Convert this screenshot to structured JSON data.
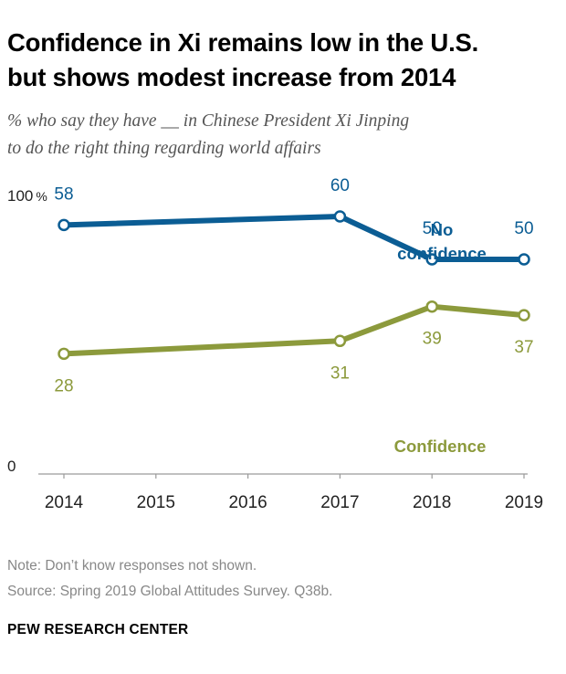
{
  "title_lines": [
    "Confidence in Xi remains low in the U.S.",
    "but shows modest increase from 2014"
  ],
  "subtitle_lines": [
    "% who say they have __ in Chinese President Xi Jinping",
    "to do the right thing regarding world affairs"
  ],
  "note": "Note: Don’t know responses not shown.",
  "source": "Source: Spring 2019 Global Attitudes Survey. Q38b.",
  "brand": "PEW RESEARCH CENTER",
  "colors": {
    "no_confidence": "#0b5d94",
    "confidence": "#8c9a3c"
  },
  "chart_data": {
    "type": "line",
    "x": [
      2014,
      2015,
      2016,
      2017,
      2018,
      2019
    ],
    "xlim": [
      2014,
      2019
    ],
    "ylim": [
      0,
      100
    ],
    "ytick_labels": [
      {
        "value": 100,
        "label": "100",
        "unit": "%"
      },
      {
        "value": 0,
        "label": "0",
        "unit": ""
      }
    ],
    "series": [
      {
        "key": "no_confidence",
        "name_lines": [
          "No",
          "confidence"
        ],
        "points": [
          {
            "x": 2014,
            "y": 58
          },
          {
            "x": 2017,
            "y": 60
          },
          {
            "x": 2018,
            "y": 50
          },
          {
            "x": 2019,
            "y": 50
          }
        ]
      },
      {
        "key": "confidence",
        "name_lines": [
          "Confidence"
        ],
        "points": [
          {
            "x": 2014,
            "y": 28
          },
          {
            "x": 2017,
            "y": 31
          },
          {
            "x": 2018,
            "y": 39
          },
          {
            "x": 2019,
            "y": 37
          }
        ]
      }
    ],
    "grid": false,
    "legend": "inline labels"
  }
}
